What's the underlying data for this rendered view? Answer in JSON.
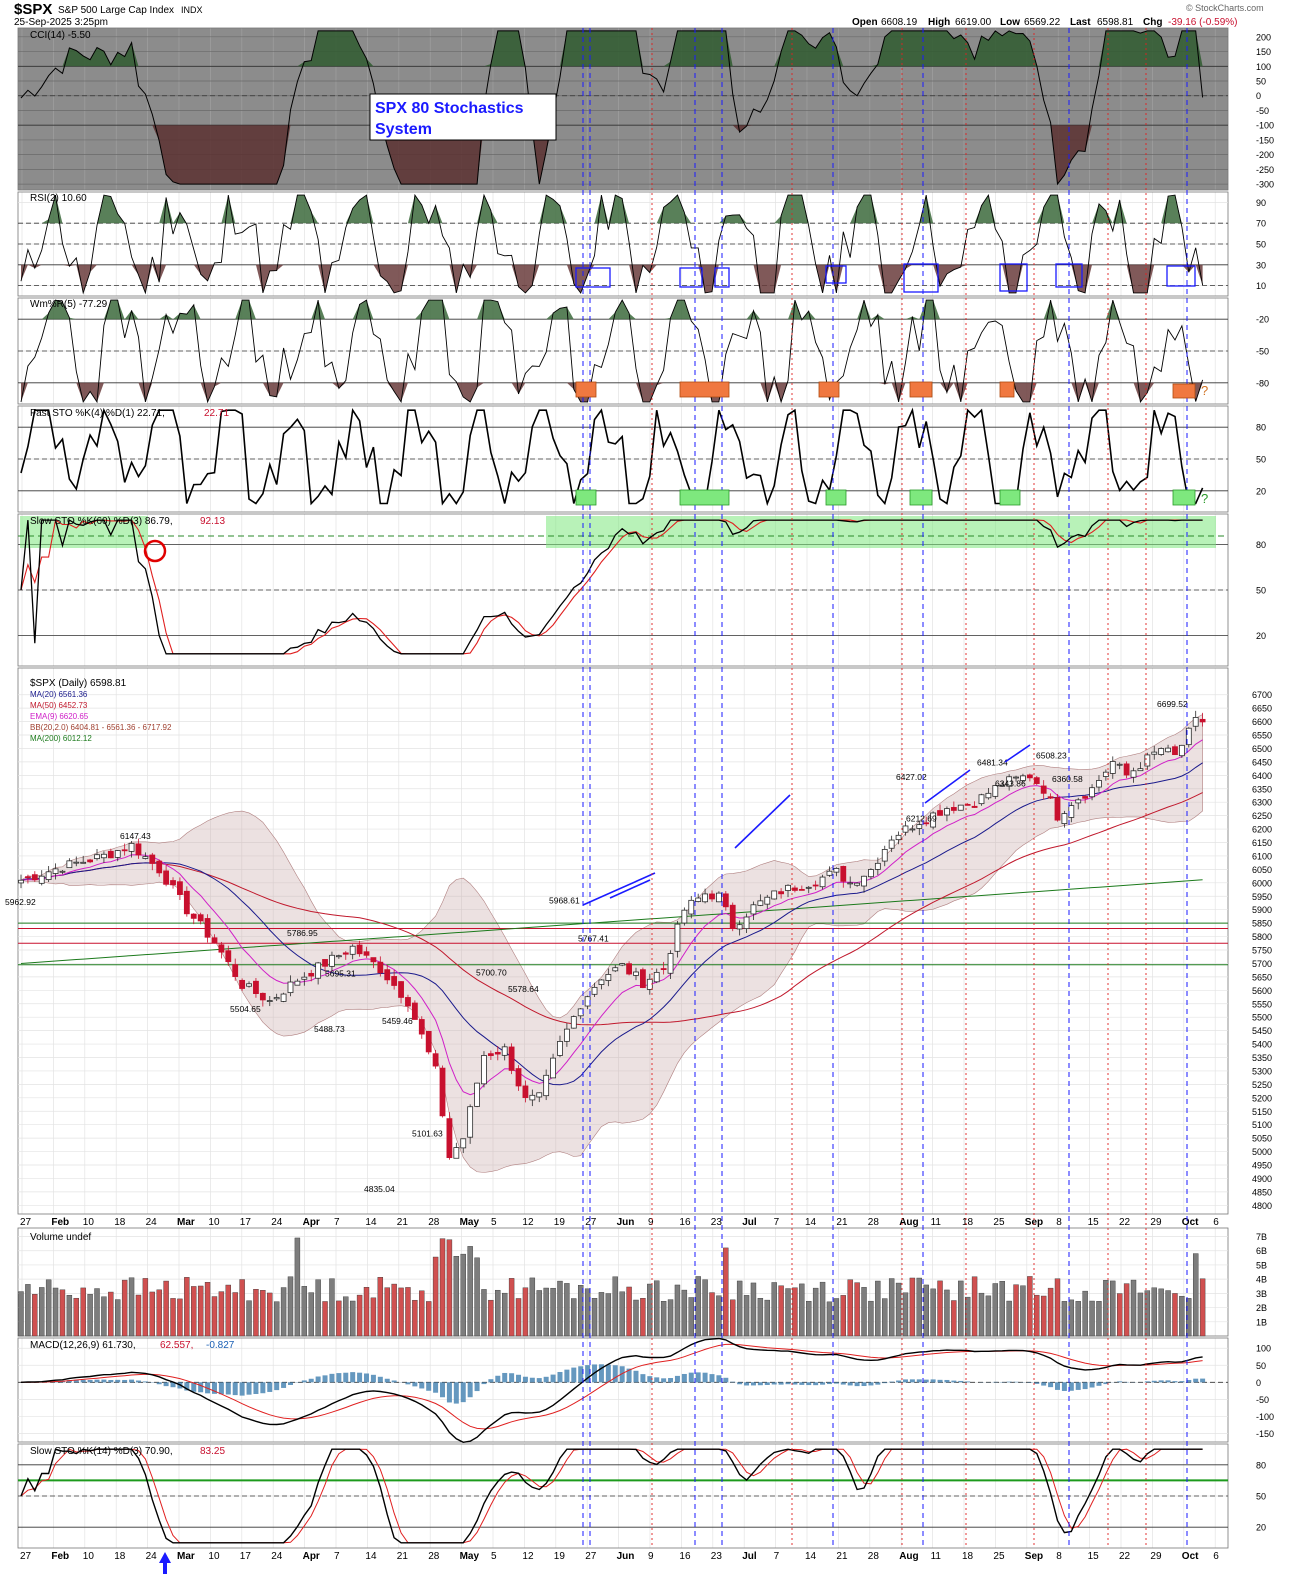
{
  "header": {
    "symbol": "$SPX",
    "name": "S&P 500 Large Cap Index",
    "exchange": "INDX",
    "date": "25-Sep-2025 3:25pm",
    "watermark": "© StockCharts.com",
    "ohlc": [
      {
        "label": "Open",
        "value": "6608.19"
      },
      {
        "label": "High",
        "value": "6619.00"
      },
      {
        "label": "Low",
        "value": "6569.22"
      },
      {
        "label": "Last",
        "value": "6598.81"
      },
      {
        "label": "Chg",
        "value": "-39.16 (-0.59%)"
      }
    ]
  },
  "annotation": {
    "text_line1": "SPX 80 Stochastics",
    "text_line2": "System",
    "question": "?"
  },
  "x_axis": {
    "labels": [
      "27",
      "Feb",
      "10",
      "18",
      "24",
      "Mar",
      "10",
      "17",
      "24",
      "Apr",
      "7",
      "14",
      "21",
      "28",
      "May",
      "5",
      "12",
      "19",
      "27",
      "Jun",
      "9",
      "16",
      "23",
      "Jul",
      "7",
      "14",
      "21",
      "28",
      "Aug",
      "11",
      "18",
      "25",
      "Sep",
      "8",
      "15",
      "22",
      "29",
      "Oct",
      "6"
    ]
  },
  "panels": {
    "cci": {
      "label": "CCI(14) -5.50",
      "ticks": [
        "200",
        "150",
        "100",
        "50",
        "0",
        "-50",
        "-100",
        "-150",
        "-200",
        "-250",
        "-300"
      ]
    },
    "rsi": {
      "label": "RSI(2) 10.60",
      "ticks": [
        "90",
        "70",
        "50",
        "30",
        "10"
      ]
    },
    "wmr": {
      "label": "Wm%R(5) -77.29",
      "ticks": [
        "-20",
        "-50",
        "-80"
      ]
    },
    "fsto": {
      "label": "Fast STO %K(4) %D(1) 22.71,",
      "label_red": "22.71",
      "ticks": [
        "80",
        "50",
        "20"
      ]
    },
    "ssto60": {
      "label": "Slow STO %K(60) %D(3) 86.79,",
      "label_red": "92.13",
      "ticks": [
        "80",
        "50",
        "20"
      ]
    },
    "price": {
      "legend": [
        {
          "text": "$SPX (Daily) 6598.81",
          "color": "#000000"
        },
        {
          "text": "MA(20) 6561.36",
          "color": "#1a1a8c"
        },
        {
          "text": "MA(50) 6452.73",
          "color": "#c0182c"
        },
        {
          "text": "EMA(9) 6620.65",
          "color": "#d020c8"
        },
        {
          "text": "BB(20,2.0) 6404.81 - 6561.36 - 6717.92",
          "color": "#a04030"
        },
        {
          "text": "MA(200) 6012.12",
          "color": "#1c7a1c"
        }
      ],
      "ticks": [
        "6700",
        "6650",
        "6600",
        "6550",
        "6500",
        "6450",
        "6400",
        "6350",
        "6300",
        "6250",
        "6200",
        "6150",
        "6100",
        "6050",
        "6000",
        "5950",
        "5900",
        "5850",
        "5800",
        "5750",
        "5700",
        "5650",
        "5600",
        "5550",
        "5500",
        "5450",
        "5400",
        "5350",
        "5300",
        "5250",
        "5200",
        "5150",
        "5100",
        "5050",
        "5000",
        "4950",
        "4900",
        "4850",
        "4800"
      ],
      "callouts": [
        {
          "text": "6147.43",
          "price": 6147.43
        },
        {
          "text": "5962.92",
          "price": 5962.92
        },
        {
          "text": "5786.95",
          "price": 5786.95
        },
        {
          "text": "5695.31",
          "price": 5695.31
        },
        {
          "text": "5504.65",
          "price": 5504.65
        },
        {
          "text": "5488.73",
          "price": 5488.73
        },
        {
          "text": "5459.46",
          "price": 5459.46
        },
        {
          "text": "5101.63",
          "price": 5101.63
        },
        {
          "text": "4835.04",
          "price": 4835.04
        },
        {
          "text": "5700.70",
          "price": 5700.7
        },
        {
          "text": "5578.64",
          "price": 5578.64
        },
        {
          "text": "5968.61",
          "price": 5968.61
        },
        {
          "text": "5767.41",
          "price": 5767.41
        },
        {
          "text": "6427.02",
          "price": 6427.02
        },
        {
          "text": "6212.69",
          "price": 6212.69
        },
        {
          "text": "6481.34",
          "price": 6481.34
        },
        {
          "text": "6343.86",
          "price": 6343.86
        },
        {
          "text": "6508.23",
          "price": 6508.23
        },
        {
          "text": "6360.58",
          "price": 6360.58
        },
        {
          "text": "6699.52",
          "price": 6699.52
        }
      ]
    },
    "volume": {
      "label": "Volume undef",
      "ticks": [
        "7B",
        "6B",
        "5B",
        "4B",
        "3B",
        "2B",
        "1B"
      ]
    },
    "macd": {
      "label": "MACD(12,26,9) 61.730,",
      "label_red": "62.557,",
      "label_blue": "-0.827",
      "ticks": [
        "100",
        "50",
        "0",
        "-50",
        "-100",
        "-150"
      ]
    },
    "ssto14": {
      "label": "Slow STO %K(14) %D(3) 70.90,",
      "label_red": "83.25",
      "ticks": [
        "80",
        "50",
        "20"
      ]
    }
  },
  "colors": {
    "up": "#2b2b2b",
    "down": "#c8102e",
    "signal_blue": "#1a1aff",
    "signal_red": "#e02020",
    "green_zone": "#7ee87e",
    "cci_bg": "#888888"
  },
  "chart_data": {
    "type": "candlestick",
    "title": "$SPX S&P 500 Large Cap Index INDX",
    "series_summary": {
      "last": 6598.81,
      "ma20": 6561.36,
      "ma50": 6452.73,
      "ema9": 6620.65,
      "bb_lower": 6404.81,
      "bb_mid": 6561.36,
      "bb_upper": 6717.92,
      "ma200": 6012.12
    },
    "labeled_extremes": [
      {
        "x": "Feb 19",
        "y": 6147.43
      },
      {
        "x": "Jan 27",
        "y": 5962.92
      },
      {
        "x": "Mar 25",
        "y": 5786.95
      },
      {
        "x": "Apr 2",
        "y": 5695.31
      },
      {
        "x": "Mar 13",
        "y": 5504.65
      },
      {
        "x": "Mar 31",
        "y": 5488.73
      },
      {
        "x": "Apr 9",
        "y": 5459.46
      },
      {
        "x": "Apr 21",
        "y": 5101.63
      },
      {
        "x": "Apr 7",
        "y": 4835.04
      },
      {
        "x": "May 2",
        "y": 5700.7
      },
      {
        "x": "May 7",
        "y": 5578.64
      },
      {
        "x": "May 19",
        "y": 5968.61
      },
      {
        "x": "May 23",
        "y": 5767.41
      },
      {
        "x": "Jul 31",
        "y": 6427.02
      },
      {
        "x": "Aug 1",
        "y": 6212.69
      },
      {
        "x": "Aug 15",
        "y": 6481.34
      },
      {
        "x": "Aug 20",
        "y": 6343.86
      },
      {
        "x": "Aug 28",
        "y": 6508.23
      },
      {
        "x": "Sep 2",
        "y": 6360.58
      },
      {
        "x": "Sep 23",
        "y": 6699.52
      }
    ]
  }
}
